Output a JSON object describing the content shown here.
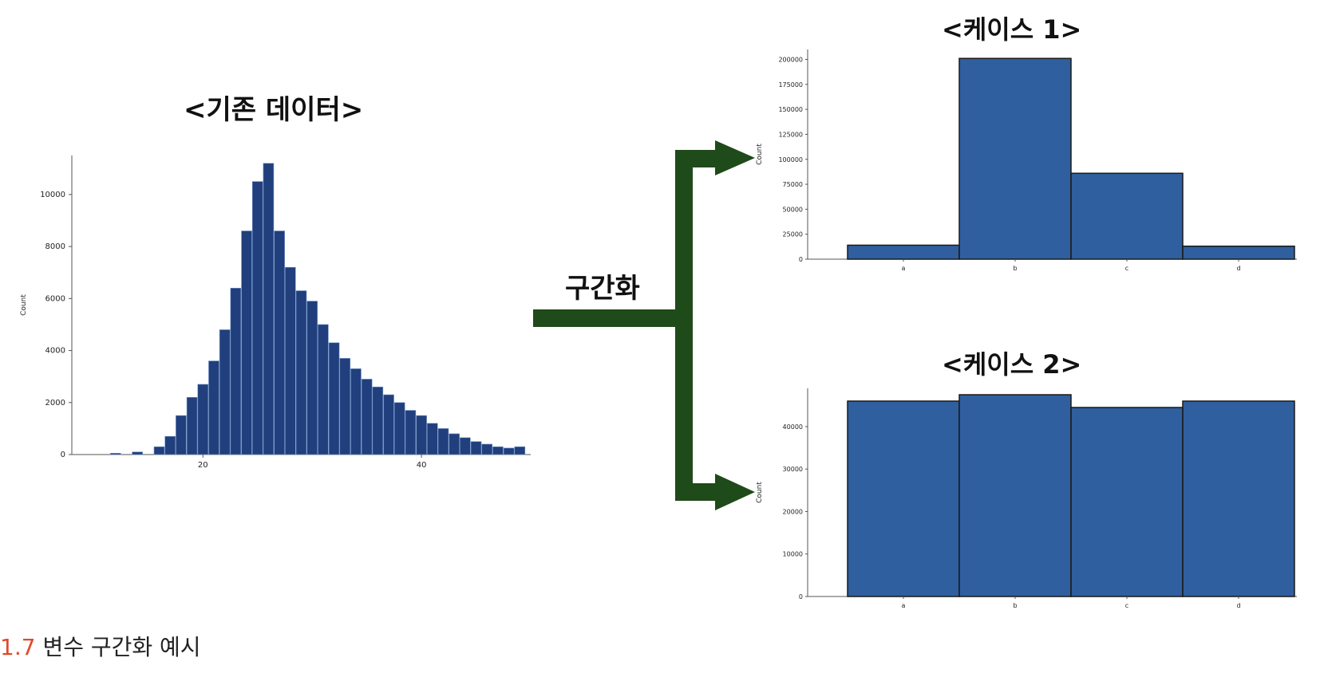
{
  "titles": {
    "original": "<기존 데이터>",
    "case1": "<케이스 1>",
    "case2": "<케이스 2>"
  },
  "arrow": {
    "label": "구간화",
    "color": "#1f4a1a"
  },
  "caption": {
    "number": "1.7",
    "text": "변수 구간화 예시"
  },
  "colors": {
    "bar": "#2f5f9e",
    "hist": "#213f7c",
    "edge": "#1a1a1a"
  },
  "chart_data": [
    {
      "type": "bar",
      "title": "<기존 데이터>",
      "xlabel": "",
      "ylabel": "Count",
      "xlim": [
        8,
        50
      ],
      "ylim": [
        0,
        11500
      ],
      "xticks": [
        20,
        40
      ],
      "yticks": [
        0,
        2000,
        4000,
        6000,
        8000,
        10000
      ],
      "x": [
        12,
        14,
        16,
        17,
        18,
        19,
        20,
        21,
        22,
        23,
        24,
        25,
        26,
        27,
        28,
        29,
        30,
        31,
        32,
        33,
        34,
        35,
        36,
        37,
        38,
        39,
        40,
        41,
        42,
        43,
        44,
        45,
        46,
        47,
        48,
        49
      ],
      "values": [
        50,
        100,
        300,
        700,
        1500,
        2200,
        2700,
        3600,
        4800,
        6400,
        8600,
        10500,
        11200,
        8600,
        7200,
        6300,
        5900,
        5000,
        4300,
        3700,
        3300,
        2900,
        2600,
        2300,
        2000,
        1700,
        1500,
        1200,
        1000,
        800,
        650,
        500,
        400,
        300,
        250,
        300
      ]
    },
    {
      "type": "bar",
      "title": "<케이스 1>",
      "xlabel": "",
      "ylabel": "Count",
      "categories": [
        "a",
        "b",
        "c",
        "d"
      ],
      "values": [
        14000,
        201000,
        86000,
        13000
      ],
      "ylim": [
        0,
        210000
      ],
      "yticks": [
        0,
        25000,
        50000,
        75000,
        100000,
        125000,
        150000,
        175000,
        200000
      ]
    },
    {
      "type": "bar",
      "title": "<케이스 2>",
      "xlabel": "",
      "ylabel": "Count",
      "categories": [
        "a",
        "b",
        "c",
        "d"
      ],
      "values": [
        46000,
        47500,
        44500,
        46000
      ],
      "ylim": [
        0,
        49000
      ],
      "yticks": [
        0,
        10000,
        20000,
        30000,
        40000
      ]
    }
  ]
}
